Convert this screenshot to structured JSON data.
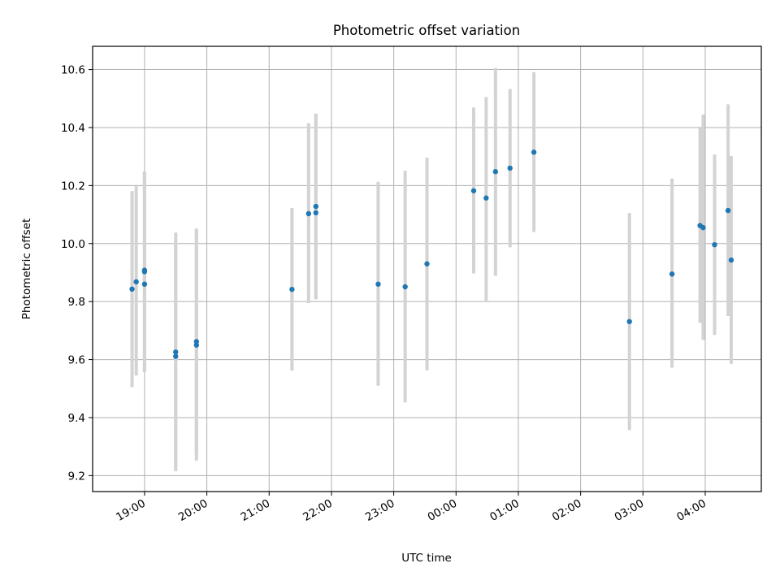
{
  "chart_data": {
    "type": "scatter",
    "title": "Photometric offset variation",
    "xlabel": "UTC time",
    "ylabel": "Photometric offset",
    "xlim": [
      "2024-01-01T18:10",
      "2024-01-02T04:54"
    ],
    "ylim": [
      9.145,
      10.68
    ],
    "grid": true,
    "x_ticks": [
      {
        "t": "2024-01-01T19:00",
        "label": "19:00"
      },
      {
        "t": "2024-01-01T20:00",
        "label": "20:00"
      },
      {
        "t": "2024-01-01T21:00",
        "label": "21:00"
      },
      {
        "t": "2024-01-01T22:00",
        "label": "22:00"
      },
      {
        "t": "2024-01-01T23:00",
        "label": "23:00"
      },
      {
        "t": "2024-01-02T00:00",
        "label": "00:00"
      },
      {
        "t": "2024-01-02T01:00",
        "label": "01:00"
      },
      {
        "t": "2024-01-02T02:00",
        "label": "02:00"
      },
      {
        "t": "2024-01-02T03:00",
        "label": "03:00"
      },
      {
        "t": "2024-01-02T04:00",
        "label": "04:00"
      }
    ],
    "y_ticks": [
      {
        "v": 9.2,
        "label": "9.2"
      },
      {
        "v": 9.4,
        "label": "9.4"
      },
      {
        "v": 9.6,
        "label": "9.6"
      },
      {
        "v": 9.8,
        "label": "9.8"
      },
      {
        "v": 10.0,
        "label": "10.0"
      },
      {
        "v": 10.2,
        "label": "10.2"
      },
      {
        "v": 10.4,
        "label": "10.4"
      },
      {
        "v": 10.6,
        "label": "10.6"
      }
    ],
    "colors": {
      "marker": "#1f77b4",
      "errorbar": "#d3d3d3",
      "grid": "#b0b0b0"
    },
    "points": [
      {
        "t": "2024-01-01T18:48",
        "y": 9.843,
        "low": 9.505,
        "high": 10.181
      },
      {
        "t": "2024-01-01T18:52",
        "y": 9.868,
        "low": 9.545,
        "high": 10.198
      },
      {
        "t": "2024-01-01T19:00",
        "y": 9.86,
        "low": 9.557,
        "high": 10.248
      },
      {
        "t": "2024-01-01T19:00",
        "y": 9.903,
        "low": 9.557,
        "high": 10.248
      },
      {
        "t": "2024-01-01T19:00",
        "y": 9.908,
        "low": 9.557,
        "high": 10.248
      },
      {
        "t": "2024-01-01T19:30",
        "y": 9.626,
        "low": 9.215,
        "high": 10.038
      },
      {
        "t": "2024-01-01T19:30",
        "y": 9.611,
        "low": 9.228,
        "high": 10.0
      },
      {
        "t": "2024-01-01T19:50",
        "y": 9.65,
        "low": 9.252,
        "high": 10.052
      },
      {
        "t": "2024-01-01T19:50",
        "y": 9.662,
        "low": 9.275,
        "high": 10.048
      },
      {
        "t": "2024-01-01T21:22",
        "y": 9.842,
        "low": 9.562,
        "high": 10.123
      },
      {
        "t": "2024-01-01T21:38",
        "y": 10.103,
        "low": 9.795,
        "high": 10.415
      },
      {
        "t": "2024-01-01T21:45",
        "y": 10.106,
        "low": 9.808,
        "high": 10.448
      },
      {
        "t": "2024-01-01T21:45",
        "y": 10.128,
        "low": 9.808,
        "high": 10.448
      },
      {
        "t": "2024-01-01T22:45",
        "y": 9.86,
        "low": 9.51,
        "high": 10.213
      },
      {
        "t": "2024-01-01T23:11",
        "y": 9.851,
        "low": 9.452,
        "high": 10.251
      },
      {
        "t": "2024-01-01T23:32",
        "y": 9.93,
        "low": 9.563,
        "high": 10.296
      },
      {
        "t": "2024-01-02T00:17",
        "y": 10.182,
        "low": 9.897,
        "high": 10.469
      },
      {
        "t": "2024-01-02T00:29",
        "y": 10.157,
        "low": 9.803,
        "high": 10.505
      },
      {
        "t": "2024-01-02T00:38",
        "y": 10.248,
        "low": 9.889,
        "high": 10.605
      },
      {
        "t": "2024-01-02T00:52",
        "y": 10.26,
        "low": 9.987,
        "high": 10.533
      },
      {
        "t": "2024-01-02T01:15",
        "y": 10.315,
        "low": 10.04,
        "high": 10.591
      },
      {
        "t": "2024-01-02T02:47",
        "y": 9.731,
        "low": 9.357,
        "high": 10.105
      },
      {
        "t": "2024-01-02T03:28",
        "y": 9.895,
        "low": 9.572,
        "high": 10.224
      },
      {
        "t": "2024-01-02T03:55",
        "y": 10.062,
        "low": 9.727,
        "high": 10.399
      },
      {
        "t": "2024-01-02T03:58",
        "y": 10.055,
        "low": 9.668,
        "high": 10.445
      },
      {
        "t": "2024-01-02T04:09",
        "y": 9.996,
        "low": 9.685,
        "high": 10.307
      },
      {
        "t": "2024-01-02T04:22",
        "y": 10.114,
        "low": 9.75,
        "high": 10.48
      },
      {
        "t": "2024-01-02T04:25",
        "y": 9.943,
        "low": 9.585,
        "high": 10.302
      }
    ]
  }
}
